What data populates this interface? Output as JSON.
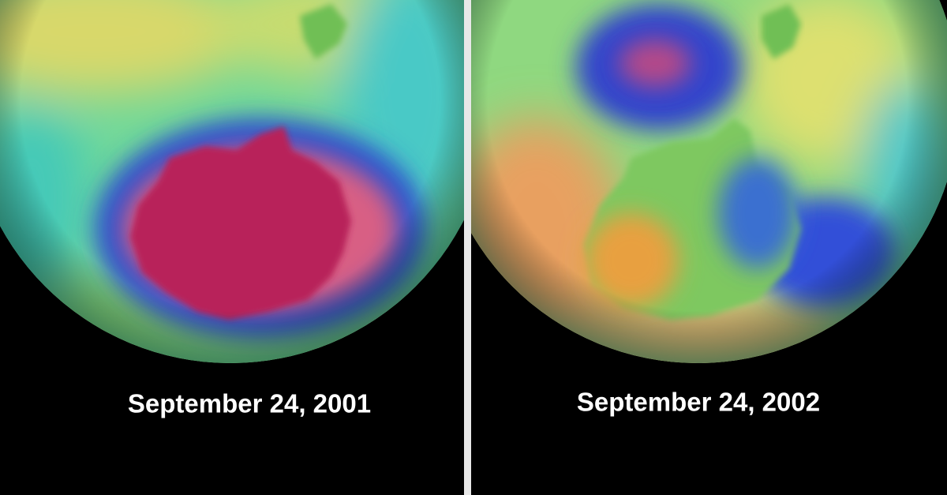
{
  "panels": [
    {
      "caption": "September 24, 2001"
    },
    {
      "caption": "September 24, 2002"
    }
  ]
}
